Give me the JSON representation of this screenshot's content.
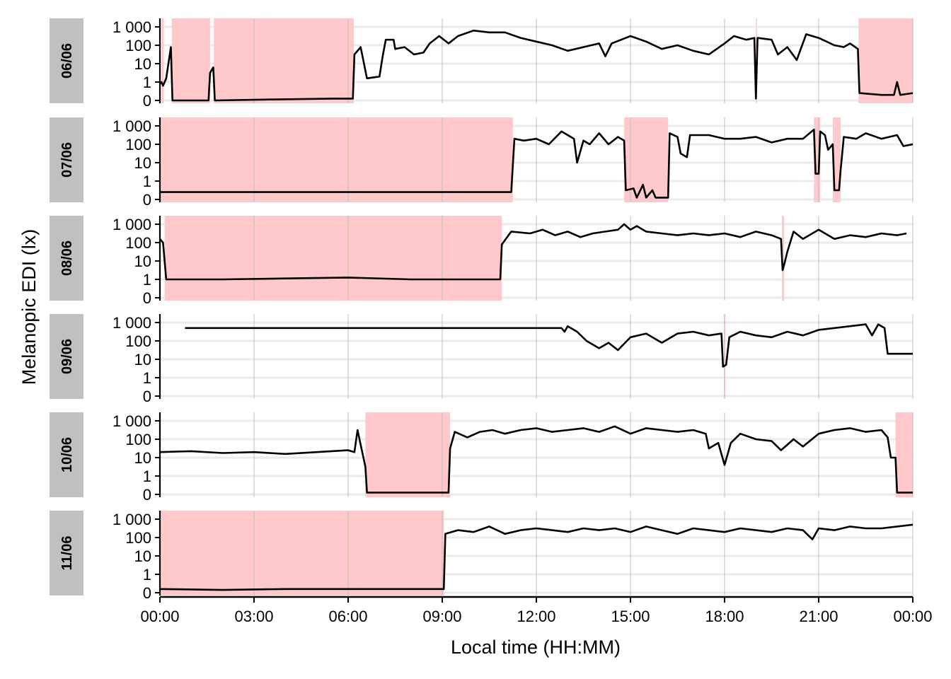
{
  "chart_data": {
    "type": "line",
    "title": "",
    "xlabel": "Local time (HH:MM)",
    "ylabel": "Melanopic EDI (lx)",
    "x_ticks": [
      "00:00",
      "03:00",
      "06:00",
      "09:00",
      "12:00",
      "15:00",
      "18:00",
      "21:00",
      "00:00"
    ],
    "x_range_hours": [
      0,
      24
    ],
    "y_scale": "symlog",
    "y_ticks": [
      "1 000",
      "100",
      "10",
      "1",
      "0"
    ],
    "y_tick_values": [
      1000,
      100,
      10,
      1,
      0
    ],
    "grid": true,
    "legend": "none",
    "colors": {
      "line": "#000000",
      "shade": "#ffc9cc",
      "strip": "#c0c0c0",
      "grid_major": "#bdbdbd",
      "grid_minor": "#ebebeb"
    },
    "panels": [
      {
        "label": "06/06",
        "shaded_hours": [
          [
            0.05,
            0.12
          ],
          [
            0.38,
            1.6
          ],
          [
            1.72,
            6.18
          ],
          [
            19.0,
            19.02
          ],
          [
            22.27,
            24.0
          ]
        ],
        "series_log_level": [
          [
            0,
            0.9
          ],
          [
            0.05,
            1.0
          ],
          [
            0.1,
            0.8
          ],
          [
            0.2,
            1.2
          ],
          [
            0.35,
            2.9
          ],
          [
            0.4,
            0
          ],
          [
            1.55,
            0
          ],
          [
            1.6,
            1.5
          ],
          [
            1.7,
            1.8
          ],
          [
            1.75,
            0
          ],
          [
            3.5,
            0.05
          ],
          [
            5.5,
            0.1
          ],
          [
            6.15,
            0.1
          ],
          [
            6.2,
            2.5
          ],
          [
            6.4,
            2.9
          ],
          [
            6.6,
            1.2
          ],
          [
            7.0,
            1.3
          ],
          [
            7.1,
            2.4
          ],
          [
            7.2,
            3.3
          ],
          [
            7.45,
            3.3
          ],
          [
            7.5,
            2.8
          ],
          [
            7.8,
            2.9
          ],
          [
            8.1,
            2.5
          ],
          [
            8.4,
            2.6
          ],
          [
            8.6,
            3.1
          ],
          [
            8.9,
            3.5
          ],
          [
            9.2,
            3.1
          ],
          [
            9.5,
            3.5
          ],
          [
            10.0,
            3.8
          ],
          [
            10.5,
            3.7
          ],
          [
            11.0,
            3.7
          ],
          [
            11.5,
            3.4
          ],
          [
            12.0,
            3.2
          ],
          [
            12.5,
            3.0
          ],
          [
            13.0,
            2.7
          ],
          [
            13.5,
            2.9
          ],
          [
            14.0,
            3.1
          ],
          [
            14.2,
            2.4
          ],
          [
            14.4,
            3.1
          ],
          [
            15.0,
            3.5
          ],
          [
            15.5,
            3.2
          ],
          [
            16.0,
            2.8
          ],
          [
            16.5,
            3.0
          ],
          [
            17.0,
            2.7
          ],
          [
            17.5,
            2.5
          ],
          [
            18.0,
            3.1
          ],
          [
            18.3,
            3.5
          ],
          [
            18.7,
            3.3
          ],
          [
            18.95,
            3.4
          ],
          [
            19.0,
            0.1
          ],
          [
            19.05,
            3.4
          ],
          [
            19.5,
            3.3
          ],
          [
            19.7,
            2.5
          ],
          [
            20.0,
            2.9
          ],
          [
            20.3,
            2.2
          ],
          [
            20.6,
            3.6
          ],
          [
            21.0,
            3.4
          ],
          [
            21.5,
            3.0
          ],
          [
            21.8,
            2.9
          ],
          [
            22.0,
            3.1
          ],
          [
            22.25,
            2.8
          ],
          [
            22.3,
            0.4
          ],
          [
            23.0,
            0.3
          ],
          [
            23.4,
            0.3
          ],
          [
            23.5,
            1.0
          ],
          [
            23.6,
            0.3
          ],
          [
            24.0,
            0.4
          ]
        ]
      },
      {
        "label": "07/06",
        "shaded_hours": [
          [
            0.0,
            11.25
          ],
          [
            14.8,
            16.2
          ],
          [
            20.85,
            21.05
          ],
          [
            21.45,
            21.7
          ]
        ],
        "series_log_level": [
          [
            0,
            0.4
          ],
          [
            11.2,
            0.4
          ],
          [
            11.3,
            3.3
          ],
          [
            11.6,
            3.2
          ],
          [
            12.0,
            3.3
          ],
          [
            12.4,
            3.0
          ],
          [
            12.8,
            3.7
          ],
          [
            13.2,
            3.3
          ],
          [
            13.3,
            2.0
          ],
          [
            13.5,
            3.2
          ],
          [
            13.7,
            3.0
          ],
          [
            14.0,
            3.6
          ],
          [
            14.3,
            3.0
          ],
          [
            14.6,
            3.4
          ],
          [
            14.8,
            3.2
          ],
          [
            14.85,
            0.5
          ],
          [
            15.1,
            0.6
          ],
          [
            15.2,
            0.1
          ],
          [
            15.4,
            0.8
          ],
          [
            15.5,
            0.1
          ],
          [
            15.7,
            0.5
          ],
          [
            15.8,
            0.1
          ],
          [
            16.2,
            0.1
          ],
          [
            16.25,
            3.6
          ],
          [
            16.5,
            3.4
          ],
          [
            16.6,
            2.5
          ],
          [
            16.8,
            2.3
          ],
          [
            16.9,
            3.5
          ],
          [
            17.5,
            3.5
          ],
          [
            18.0,
            3.3
          ],
          [
            18.5,
            3.3
          ],
          [
            19.0,
            3.4
          ],
          [
            19.5,
            3.1
          ],
          [
            20.0,
            3.3
          ],
          [
            20.5,
            3.3
          ],
          [
            20.85,
            3.8
          ],
          [
            20.9,
            1.4
          ],
          [
            21.0,
            1.4
          ],
          [
            21.05,
            3.7
          ],
          [
            21.2,
            3.5
          ],
          [
            21.3,
            2.7
          ],
          [
            21.45,
            3.0
          ],
          [
            21.5,
            0.5
          ],
          [
            21.65,
            0.5
          ],
          [
            21.7,
            1.6
          ],
          [
            21.8,
            3.4
          ],
          [
            22.2,
            3.3
          ],
          [
            22.5,
            3.6
          ],
          [
            23.0,
            3.3
          ],
          [
            23.5,
            3.5
          ],
          [
            23.7,
            2.9
          ],
          [
            24.0,
            3.0
          ]
        ]
      },
      {
        "label": "08/06",
        "shaded_hours": [
          [
            0.15,
            10.9
          ],
          [
            19.83,
            19.9
          ]
        ],
        "series_log_level": [
          [
            0,
            3.2
          ],
          [
            0.1,
            3.0
          ],
          [
            0.2,
            1.0
          ],
          [
            2.0,
            1.0
          ],
          [
            4.0,
            1.05
          ],
          [
            6.0,
            1.1
          ],
          [
            8.0,
            1.0
          ],
          [
            10.85,
            1.0
          ],
          [
            10.9,
            2.9
          ],
          [
            11.2,
            3.6
          ],
          [
            11.8,
            3.5
          ],
          [
            12.2,
            3.7
          ],
          [
            12.6,
            3.4
          ],
          [
            13.0,
            3.6
          ],
          [
            13.4,
            3.3
          ],
          [
            13.8,
            3.5
          ],
          [
            14.2,
            3.6
          ],
          [
            14.6,
            3.7
          ],
          [
            14.8,
            4.0
          ],
          [
            15.0,
            3.7
          ],
          [
            15.2,
            3.9
          ],
          [
            15.5,
            3.6
          ],
          [
            16.0,
            3.5
          ],
          [
            16.5,
            3.4
          ],
          [
            17.0,
            3.5
          ],
          [
            17.5,
            3.4
          ],
          [
            18.0,
            3.5
          ],
          [
            18.5,
            3.3
          ],
          [
            19.0,
            3.6
          ],
          [
            19.5,
            3.4
          ],
          [
            19.8,
            3.2
          ],
          [
            19.85,
            1.5
          ],
          [
            19.9,
            1.8
          ],
          [
            20.0,
            2.5
          ],
          [
            20.2,
            3.6
          ],
          [
            20.5,
            3.2
          ],
          [
            21.0,
            3.7
          ],
          [
            21.5,
            3.2
          ],
          [
            22.0,
            3.4
          ],
          [
            22.5,
            3.3
          ],
          [
            23.0,
            3.5
          ],
          [
            23.5,
            3.4
          ],
          [
            23.8,
            3.5
          ]
        ]
      },
      {
        "label": "09/06",
        "shaded_hours": [
          [
            17.98,
            18.02
          ]
        ],
        "series_log_level": [
          [
            0.8,
            3.7
          ],
          [
            12.8,
            3.7
          ],
          [
            12.9,
            3.5
          ],
          [
            13.0,
            3.8
          ],
          [
            13.3,
            3.5
          ],
          [
            13.6,
            3.0
          ],
          [
            14.0,
            2.6
          ],
          [
            14.3,
            2.9
          ],
          [
            14.6,
            2.5
          ],
          [
            15.0,
            3.2
          ],
          [
            15.5,
            3.4
          ],
          [
            16.0,
            2.9
          ],
          [
            16.5,
            3.4
          ],
          [
            17.0,
            3.5
          ],
          [
            17.5,
            3.3
          ],
          [
            17.9,
            3.4
          ],
          [
            17.95,
            1.6
          ],
          [
            18.05,
            1.7
          ],
          [
            18.15,
            3.2
          ],
          [
            18.5,
            3.5
          ],
          [
            19.0,
            3.3
          ],
          [
            19.5,
            3.2
          ],
          [
            20.0,
            3.5
          ],
          [
            20.5,
            3.3
          ],
          [
            21.0,
            3.6
          ],
          [
            21.5,
            3.7
          ],
          [
            22.0,
            3.8
          ],
          [
            22.5,
            3.9
          ],
          [
            22.7,
            3.3
          ],
          [
            22.9,
            3.9
          ],
          [
            23.1,
            3.7
          ],
          [
            23.2,
            2.3
          ],
          [
            24.0,
            2.3
          ]
        ]
      },
      {
        "label": "10/06",
        "shaded_hours": [
          [
            6.55,
            9.25
          ],
          [
            23.45,
            24.0
          ]
        ],
        "series_log_level": [
          [
            0,
            2.3
          ],
          [
            1.0,
            2.35
          ],
          [
            2.0,
            2.25
          ],
          [
            3.0,
            2.3
          ],
          [
            4.0,
            2.2
          ],
          [
            5.0,
            2.3
          ],
          [
            6.0,
            2.4
          ],
          [
            6.2,
            2.3
          ],
          [
            6.3,
            3.5
          ],
          [
            6.4,
            2.7
          ],
          [
            6.55,
            1.5
          ],
          [
            6.6,
            0.1
          ],
          [
            8.0,
            0.1
          ],
          [
            9.2,
            0.1
          ],
          [
            9.25,
            2.5
          ],
          [
            9.4,
            3.4
          ],
          [
            9.8,
            3.1
          ],
          [
            10.2,
            3.4
          ],
          [
            10.6,
            3.5
          ],
          [
            11.0,
            3.3
          ],
          [
            11.5,
            3.5
          ],
          [
            12.0,
            3.6
          ],
          [
            12.5,
            3.4
          ],
          [
            13.0,
            3.5
          ],
          [
            13.5,
            3.6
          ],
          [
            14.0,
            3.4
          ],
          [
            14.5,
            3.7
          ],
          [
            15.0,
            3.3
          ],
          [
            15.5,
            3.6
          ],
          [
            16.0,
            3.5
          ],
          [
            16.5,
            3.4
          ],
          [
            17.0,
            3.5
          ],
          [
            17.4,
            3.3
          ],
          [
            17.5,
            2.5
          ],
          [
            17.8,
            2.8
          ],
          [
            18.0,
            1.6
          ],
          [
            18.2,
            2.8
          ],
          [
            18.5,
            3.3
          ],
          [
            19.0,
            3.0
          ],
          [
            19.5,
            2.9
          ],
          [
            19.8,
            2.4
          ],
          [
            20.2,
            3.0
          ],
          [
            20.5,
            2.6
          ],
          [
            21.0,
            3.3
          ],
          [
            21.5,
            3.5
          ],
          [
            22.0,
            3.6
          ],
          [
            22.5,
            3.4
          ],
          [
            23.0,
            3.5
          ],
          [
            23.2,
            3.1
          ],
          [
            23.3,
            2.0
          ],
          [
            23.45,
            2.0
          ],
          [
            23.5,
            0.1
          ],
          [
            24.0,
            0.1
          ]
        ]
      },
      {
        "label": "11/06",
        "shaded_hours": [
          [
            0.0,
            9.05
          ]
        ],
        "series_log_level": [
          [
            0,
            0.2
          ],
          [
            2.0,
            0.15
          ],
          [
            4.0,
            0.2
          ],
          [
            6.0,
            0.2
          ],
          [
            8.0,
            0.2
          ],
          [
            9.05,
            0.2
          ],
          [
            9.1,
            3.2
          ],
          [
            9.5,
            3.4
          ],
          [
            10.0,
            3.3
          ],
          [
            10.5,
            3.6
          ],
          [
            11.0,
            3.2
          ],
          [
            11.5,
            3.4
          ],
          [
            12.0,
            3.5
          ],
          [
            12.5,
            3.4
          ],
          [
            13.0,
            3.3
          ],
          [
            13.5,
            3.5
          ],
          [
            14.0,
            3.4
          ],
          [
            14.5,
            3.5
          ],
          [
            15.0,
            3.3
          ],
          [
            15.5,
            3.6
          ],
          [
            16.0,
            3.4
          ],
          [
            16.5,
            3.2
          ],
          [
            17.0,
            3.5
          ],
          [
            17.5,
            3.4
          ],
          [
            18.0,
            3.3
          ],
          [
            18.5,
            3.5
          ],
          [
            19.0,
            3.4
          ],
          [
            19.5,
            3.3
          ],
          [
            20.0,
            3.5
          ],
          [
            20.5,
            3.4
          ],
          [
            20.8,
            2.9
          ],
          [
            21.0,
            3.5
          ],
          [
            21.5,
            3.4
          ],
          [
            22.0,
            3.6
          ],
          [
            22.5,
            3.5
          ],
          [
            23.0,
            3.5
          ],
          [
            23.5,
            3.6
          ],
          [
            24.0,
            3.7
          ]
        ]
      }
    ]
  }
}
